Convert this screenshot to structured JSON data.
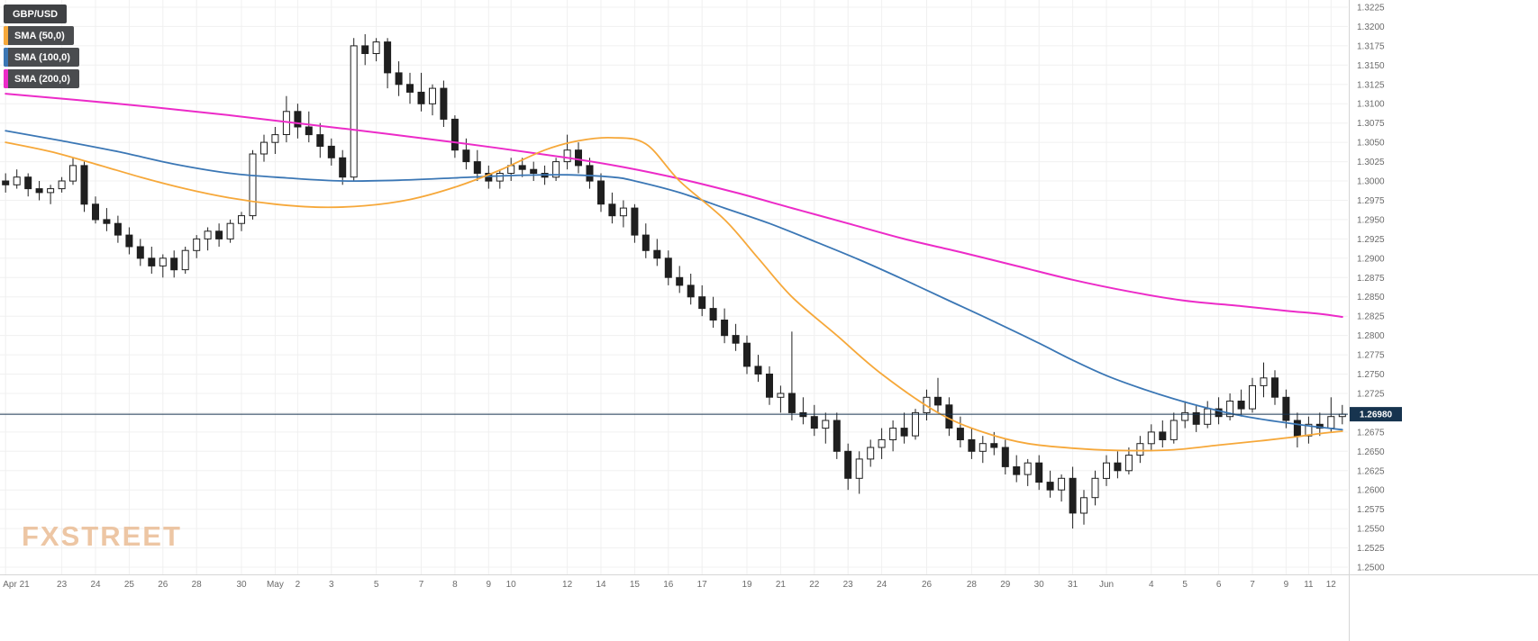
{
  "legend": {
    "symbol": "GBP/USD",
    "items": [
      {
        "label": "SMA (50,0)",
        "color": "#f6a83a"
      },
      {
        "label": "SMA (100,0)",
        "color": "#3b77b5"
      },
      {
        "label": "SMA (200,0)",
        "color": "#ec2bc8"
      }
    ]
  },
  "watermark": "FXSTREET",
  "last_price": {
    "value": "1.26980"
  },
  "colors": {
    "grid": "#f0f0f0",
    "axis_border": "#d6d6d6",
    "axis_text": "#6b6b6b",
    "candle": "#1f1f1f",
    "candle_up_fill": "#ffffff",
    "price_line": "#17344f",
    "price_label_bg": "#17344f",
    "price_label_text": "#ffffff"
  },
  "chart_data": {
    "type": "candlestick",
    "title": "GBP/USD",
    "legend_entries": [
      "GBP/USD",
      "SMA (50,0)",
      "SMA (100,0)",
      "SMA (200,0)"
    ],
    "y_axis": {
      "min": 1.25,
      "max": 1.3225,
      "step": 0.0025,
      "decimals": 4
    },
    "current_price": 1.2698,
    "x_ticks": [
      [
        0,
        "Apr 21"
      ],
      [
        5,
        "23"
      ],
      [
        8,
        "24"
      ],
      [
        11,
        "25"
      ],
      [
        14,
        "26"
      ],
      [
        17,
        "28"
      ],
      [
        21,
        "30"
      ],
      [
        24,
        "May"
      ],
      [
        26,
        "2"
      ],
      [
        29,
        "3"
      ],
      [
        33,
        "5"
      ],
      [
        37,
        "7"
      ],
      [
        40,
        "8"
      ],
      [
        43,
        "9"
      ],
      [
        45,
        "10"
      ],
      [
        50,
        "12"
      ],
      [
        53,
        "14"
      ],
      [
        56,
        "15"
      ],
      [
        59,
        "16"
      ],
      [
        62,
        "17"
      ],
      [
        66,
        "19"
      ],
      [
        69,
        "21"
      ],
      [
        72,
        "22"
      ],
      [
        75,
        "23"
      ],
      [
        78,
        "24"
      ],
      [
        82,
        "26"
      ],
      [
        86,
        "28"
      ],
      [
        89,
        "29"
      ],
      [
        92,
        "30"
      ],
      [
        95,
        "31"
      ],
      [
        98,
        "Jun"
      ],
      [
        102,
        "4"
      ],
      [
        105,
        "5"
      ],
      [
        108,
        "6"
      ],
      [
        111,
        "7"
      ],
      [
        114,
        "9"
      ],
      [
        116,
        "11"
      ],
      [
        118,
        "12"
      ]
    ],
    "candles": [
      [
        1.3,
        1.301,
        1.2985,
        1.2995
      ],
      [
        1.2995,
        1.3015,
        1.299,
        1.3005
      ],
      [
        1.3005,
        1.301,
        1.298,
        1.299
      ],
      [
        1.299,
        1.3,
        1.2975,
        1.2985
      ],
      [
        1.2985,
        1.2995,
        1.297,
        1.299
      ],
      [
        1.299,
        1.3005,
        1.2985,
        1.3
      ],
      [
        1.3,
        1.303,
        1.2995,
        1.302
      ],
      [
        1.302,
        1.3025,
        1.296,
        1.297
      ],
      [
        1.297,
        1.298,
        1.2945,
        1.295
      ],
      [
        1.295,
        1.2965,
        1.2935,
        1.2945
      ],
      [
        1.2945,
        1.2955,
        1.292,
        1.293
      ],
      [
        1.293,
        1.294,
        1.2905,
        1.2915
      ],
      [
        1.2915,
        1.2925,
        1.289,
        1.29
      ],
      [
        1.29,
        1.2915,
        1.288,
        1.289
      ],
      [
        1.289,
        1.2905,
        1.2875,
        1.29
      ],
      [
        1.29,
        1.291,
        1.2875,
        1.2885
      ],
      [
        1.2885,
        1.2915,
        1.288,
        1.291
      ],
      [
        1.291,
        1.293,
        1.29,
        1.2925
      ],
      [
        1.2925,
        1.294,
        1.291,
        1.2935
      ],
      [
        1.2935,
        1.2945,
        1.2915,
        1.2925
      ],
      [
        1.2925,
        1.295,
        1.292,
        1.2945
      ],
      [
        1.2945,
        1.296,
        1.2935,
        1.2955
      ],
      [
        1.2955,
        1.304,
        1.295,
        1.3035
      ],
      [
        1.3035,
        1.306,
        1.3025,
        1.305
      ],
      [
        1.305,
        1.307,
        1.3035,
        1.306
      ],
      [
        1.306,
        1.311,
        1.305,
        1.309
      ],
      [
        1.309,
        1.31,
        1.3055,
        1.307
      ],
      [
        1.307,
        1.309,
        1.305,
        1.306
      ],
      [
        1.306,
        1.3075,
        1.303,
        1.3045
      ],
      [
        1.3045,
        1.3055,
        1.302,
        1.303
      ],
      [
        1.303,
        1.304,
        1.2995,
        1.3005
      ],
      [
        1.3005,
        1.3185,
        1.3,
        1.3175
      ],
      [
        1.3175,
        1.319,
        1.315,
        1.3165
      ],
      [
        1.3165,
        1.3185,
        1.3155,
        1.318
      ],
      [
        1.318,
        1.3185,
        1.312,
        1.314
      ],
      [
        1.314,
        1.3155,
        1.311,
        1.3125
      ],
      [
        1.3125,
        1.314,
        1.31,
        1.3115
      ],
      [
        1.3115,
        1.314,
        1.309,
        1.31
      ],
      [
        1.31,
        1.3125,
        1.3085,
        1.312
      ],
      [
        1.312,
        1.313,
        1.307,
        1.308
      ],
      [
        1.308,
        1.3085,
        1.303,
        1.304
      ],
      [
        1.304,
        1.3055,
        1.3015,
        1.3025
      ],
      [
        1.3025,
        1.304,
        1.3,
        1.301
      ],
      [
        1.301,
        1.302,
        1.299,
        1.3
      ],
      [
        1.3,
        1.3015,
        1.299,
        1.301
      ],
      [
        1.301,
        1.303,
        1.3,
        1.302
      ],
      [
        1.302,
        1.303,
        1.3005,
        1.3015
      ],
      [
        1.3015,
        1.3025,
        1.3,
        1.301
      ],
      [
        1.301,
        1.302,
        1.2995,
        1.3005
      ],
      [
        1.3005,
        1.303,
        1.3,
        1.3025
      ],
      [
        1.3025,
        1.306,
        1.3015,
        1.304
      ],
      [
        1.304,
        1.305,
        1.301,
        1.302
      ],
      [
        1.302,
        1.303,
        1.299,
        1.3
      ],
      [
        1.3,
        1.301,
        1.296,
        1.297
      ],
      [
        1.297,
        1.2985,
        1.2945,
        1.2955
      ],
      [
        1.2955,
        1.2975,
        1.294,
        1.2965
      ],
      [
        1.2965,
        1.297,
        1.292,
        1.293
      ],
      [
        1.293,
        1.2945,
        1.29,
        1.291
      ],
      [
        1.291,
        1.2925,
        1.289,
        1.29
      ],
      [
        1.29,
        1.291,
        1.2865,
        1.2875
      ],
      [
        1.2875,
        1.289,
        1.2855,
        1.2865
      ],
      [
        1.2865,
        1.288,
        1.284,
        1.285
      ],
      [
        1.285,
        1.2865,
        1.2825,
        1.2835
      ],
      [
        1.2835,
        1.285,
        1.281,
        1.282
      ],
      [
        1.282,
        1.2835,
        1.279,
        1.28
      ],
      [
        1.28,
        1.2815,
        1.278,
        1.279
      ],
      [
        1.279,
        1.28,
        1.275,
        1.276
      ],
      [
        1.276,
        1.2775,
        1.274,
        1.275
      ],
      [
        1.275,
        1.276,
        1.271,
        1.272
      ],
      [
        1.272,
        1.2735,
        1.27,
        1.2725
      ],
      [
        1.2725,
        1.2805,
        1.269,
        1.27
      ],
      [
        1.27,
        1.272,
        1.2685,
        1.2695
      ],
      [
        1.2695,
        1.271,
        1.267,
        1.268
      ],
      [
        1.268,
        1.27,
        1.266,
        1.269
      ],
      [
        1.269,
        1.27,
        1.264,
        1.265
      ],
      [
        1.265,
        1.266,
        1.26,
        1.2615
      ],
      [
        1.2615,
        1.265,
        1.2595,
        1.264
      ],
      [
        1.264,
        1.2665,
        1.263,
        1.2655
      ],
      [
        1.2655,
        1.268,
        1.264,
        1.2665
      ],
      [
        1.2665,
        1.269,
        1.265,
        1.268
      ],
      [
        1.268,
        1.27,
        1.266,
        1.267
      ],
      [
        1.267,
        1.2705,
        1.2665,
        1.27
      ],
      [
        1.27,
        1.273,
        1.269,
        1.272
      ],
      [
        1.272,
        1.2745,
        1.27,
        1.271
      ],
      [
        1.271,
        1.272,
        1.267,
        1.268
      ],
      [
        1.268,
        1.2695,
        1.2655,
        1.2665
      ],
      [
        1.2665,
        1.268,
        1.264,
        1.265
      ],
      [
        1.265,
        1.267,
        1.2635,
        1.266
      ],
      [
        1.266,
        1.2675,
        1.2645,
        1.2655
      ],
      [
        1.2655,
        1.2665,
        1.262,
        1.263
      ],
      [
        1.263,
        1.2645,
        1.261,
        1.262
      ],
      [
        1.262,
        1.264,
        1.2605,
        1.2635
      ],
      [
        1.2635,
        1.2645,
        1.26,
        1.261
      ],
      [
        1.261,
        1.2625,
        1.259,
        1.26
      ],
      [
        1.26,
        1.262,
        1.2585,
        1.2615
      ],
      [
        1.2615,
        1.263,
        1.255,
        1.257
      ],
      [
        1.257,
        1.26,
        1.2555,
        1.259
      ],
      [
        1.259,
        1.2625,
        1.258,
        1.2615
      ],
      [
        1.2615,
        1.2645,
        1.2605,
        1.2635
      ],
      [
        1.2635,
        1.265,
        1.2615,
        1.2625
      ],
      [
        1.2625,
        1.2655,
        1.262,
        1.2645
      ],
      [
        1.2645,
        1.267,
        1.2635,
        1.266
      ],
      [
        1.266,
        1.2685,
        1.265,
        1.2675
      ],
      [
        1.2675,
        1.269,
        1.2655,
        1.2665
      ],
      [
        1.2665,
        1.27,
        1.266,
        1.269
      ],
      [
        1.269,
        1.2715,
        1.268,
        1.27
      ],
      [
        1.27,
        1.271,
        1.2675,
        1.2685
      ],
      [
        1.2685,
        1.2715,
        1.268,
        1.2705
      ],
      [
        1.2705,
        1.272,
        1.2685,
        1.2695
      ],
      [
        1.2695,
        1.2725,
        1.269,
        1.2715
      ],
      [
        1.2715,
        1.273,
        1.2695,
        1.2705
      ],
      [
        1.2705,
        1.2745,
        1.27,
        1.2735
      ],
      [
        1.2735,
        1.2765,
        1.272,
        1.2745
      ],
      [
        1.2745,
        1.2755,
        1.271,
        1.272
      ],
      [
        1.272,
        1.273,
        1.268,
        1.269
      ],
      [
        1.269,
        1.27,
        1.2655,
        1.267
      ],
      [
        1.267,
        1.2695,
        1.266,
        1.2685
      ],
      [
        1.2685,
        1.27,
        1.267,
        1.268
      ],
      [
        1.268,
        1.272,
        1.2675,
        1.2695
      ],
      [
        1.2695,
        1.271,
        1.2685,
        1.2698
      ]
    ],
    "series": [
      {
        "name": "SMA (50,0)",
        "color": "#f6a83a",
        "points": [
          [
            0,
            1.305
          ],
          [
            4,
            1.3038
          ],
          [
            8,
            1.3022
          ],
          [
            12,
            1.3005
          ],
          [
            16,
            1.299
          ],
          [
            20,
            1.2978
          ],
          [
            24,
            1.297
          ],
          [
            28,
            1.2966
          ],
          [
            32,
            1.2968
          ],
          [
            36,
            1.2976
          ],
          [
            40,
            1.2992
          ],
          [
            44,
            1.3014
          ],
          [
            48,
            1.304
          ],
          [
            51,
            1.3052
          ],
          [
            54,
            1.3056
          ],
          [
            57,
            1.3048
          ],
          [
            60,
            1.3
          ],
          [
            64,
            1.295
          ],
          [
            67,
            1.29
          ],
          [
            70,
            1.285
          ],
          [
            74,
            1.28
          ],
          [
            78,
            1.275
          ],
          [
            83,
            1.27
          ],
          [
            87,
            1.2675
          ],
          [
            91,
            1.266
          ],
          [
            96,
            1.2653
          ],
          [
            100,
            1.2651
          ],
          [
            104,
            1.2652
          ],
          [
            108,
            1.2658
          ],
          [
            112,
            1.2664
          ],
          [
            115,
            1.2669
          ],
          [
            117,
            1.2673
          ],
          [
            119,
            1.2676
          ]
        ]
      },
      {
        "name": "SMA (100,0)",
        "color": "#3b77b5",
        "points": [
          [
            0,
            1.3065
          ],
          [
            5,
            1.3052
          ],
          [
            10,
            1.3038
          ],
          [
            15,
            1.3022
          ],
          [
            20,
            1.301
          ],
          [
            25,
            1.3004
          ],
          [
            30,
            1.3
          ],
          [
            35,
            1.3001
          ],
          [
            40,
            1.3004
          ],
          [
            45,
            1.3007
          ],
          [
            50,
            1.3008
          ],
          [
            54,
            1.3005
          ],
          [
            56,
            1.3
          ],
          [
            60,
            1.2985
          ],
          [
            64,
            1.2965
          ],
          [
            68,
            1.2945
          ],
          [
            72,
            1.2922
          ],
          [
            76,
            1.2898
          ],
          [
            80,
            1.2872
          ],
          [
            84,
            1.2845
          ],
          [
            88,
            1.2818
          ],
          [
            92,
            1.279
          ],
          [
            95,
            1.2768
          ],
          [
            98,
            1.2748
          ],
          [
            101,
            1.2732
          ],
          [
            104,
            1.2718
          ],
          [
            107,
            1.2706
          ],
          [
            110,
            1.2696
          ],
          [
            113,
            1.2689
          ],
          [
            116,
            1.2683
          ],
          [
            119,
            1.2678
          ]
        ]
      },
      {
        "name": "SMA (200,0)",
        "color": "#ec2bc8",
        "points": [
          [
            0,
            1.3113
          ],
          [
            10,
            1.31
          ],
          [
            20,
            1.3085
          ],
          [
            30,
            1.3068
          ],
          [
            40,
            1.305
          ],
          [
            50,
            1.303
          ],
          [
            55,
            1.3018
          ],
          [
            60,
            1.3003
          ],
          [
            65,
            1.2985
          ],
          [
            70,
            1.2965
          ],
          [
            75,
            1.2945
          ],
          [
            80,
            1.2925
          ],
          [
            85,
            1.2908
          ],
          [
            90,
            1.289
          ],
          [
            95,
            1.2872
          ],
          [
            100,
            1.2857
          ],
          [
            105,
            1.2845
          ],
          [
            110,
            1.2838
          ],
          [
            114,
            1.2832
          ],
          [
            117,
            1.2828
          ],
          [
            119,
            1.2824
          ]
        ]
      }
    ]
  }
}
